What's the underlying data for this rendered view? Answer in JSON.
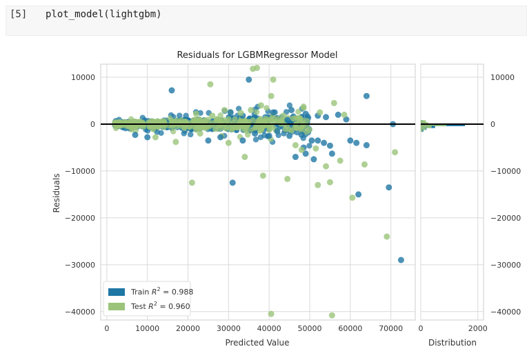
{
  "cell": {
    "prompt": "[5]",
    "code": "plot_model(lightgbm)"
  },
  "colors": {
    "train": "#1f77a4",
    "test": "#9bc47a",
    "zero_line": "#000000",
    "grid": "#d9d9d9"
  },
  "chart_data": {
    "type": "scatter",
    "title": "Residuals for LGBMRegressor Model",
    "xlabel": "Predicted Value",
    "ylabel": "Residuals",
    "xlim": [
      -1500,
      76000
    ],
    "ylim": [
      -41800,
      12800
    ],
    "x_ticks": [
      "0",
      "10000",
      "20000",
      "30000",
      "40000",
      "50000",
      "60000",
      "70000"
    ],
    "y_ticks": [
      "10000",
      "0",
      "−10000",
      "−20000",
      "−30000",
      "−40000"
    ],
    "grid": true,
    "legend_placement": "bottom-left",
    "legend": [
      {
        "label_prefix": "Train ",
        "r2_text": " = 0.988"
      },
      {
        "label_prefix": "Test ",
        "r2_text": " = 0.960"
      }
    ],
    "series": [
      {
        "name": "Train",
        "points": [
          [
            16000,
            7200
          ],
          [
            35000,
            9500
          ],
          [
            30500,
            2500
          ],
          [
            33500,
            1800
          ],
          [
            41000,
            2500
          ],
          [
            44500,
            900
          ],
          [
            45500,
            3000
          ],
          [
            49000,
            2200
          ],
          [
            52000,
            1800
          ],
          [
            54000,
            1500
          ],
          [
            57000,
            2000
          ],
          [
            59000,
            1000
          ],
          [
            64000,
            6000
          ],
          [
            70500,
            0
          ],
          [
            40000,
            -2500
          ],
          [
            45000,
            -2500
          ],
          [
            48000,
            -2300
          ],
          [
            50500,
            -3500
          ],
          [
            52000,
            -3500
          ],
          [
            53500,
            -4000
          ],
          [
            55000,
            -4600
          ],
          [
            60000,
            -3500
          ],
          [
            48500,
            -5000
          ],
          [
            49000,
            -6300
          ],
          [
            46500,
            -7000
          ],
          [
            55500,
            -6300
          ],
          [
            61500,
            -4000
          ],
          [
            64000,
            -4500
          ],
          [
            33500,
            -3500
          ],
          [
            36500,
            -2000
          ],
          [
            31000,
            -12500
          ],
          [
            51000,
            -7500
          ],
          [
            62000,
            -15000
          ],
          [
            69500,
            -13500
          ],
          [
            72500,
            -29000
          ],
          [
            10000,
            -2800
          ],
          [
            7000,
            -2300
          ],
          [
            25000,
            -3500
          ],
          [
            28000,
            -2800
          ],
          [
            42000,
            -1500
          ]
        ]
      },
      {
        "name": "Test",
        "points": [
          [
            36000,
            11800
          ],
          [
            37000,
            12000
          ],
          [
            25500,
            8500
          ],
          [
            41000,
            9500
          ],
          [
            29000,
            3000
          ],
          [
            33000,
            2400
          ],
          [
            26000,
            1800
          ],
          [
            22000,
            2200
          ],
          [
            43500,
            1800
          ],
          [
            46000,
            1200
          ],
          [
            48500,
            3500
          ],
          [
            56000,
            4500
          ],
          [
            58500,
            2000
          ],
          [
            52500,
            2500
          ],
          [
            38000,
            4000
          ],
          [
            35500,
            3000
          ],
          [
            40500,
            6000
          ],
          [
            21000,
            -12500
          ],
          [
            38500,
            -11000
          ],
          [
            34000,
            -7000
          ],
          [
            44500,
            -11700
          ],
          [
            46500,
            -4500
          ],
          [
            48000,
            -5500
          ],
          [
            51500,
            -5200
          ],
          [
            52000,
            -13000
          ],
          [
            54000,
            -9000
          ],
          [
            55000,
            -12400
          ],
          [
            57500,
            -7800
          ],
          [
            60500,
            -15700
          ],
          [
            63500,
            -8600
          ],
          [
            69000,
            -24000
          ],
          [
            71000,
            -6000
          ],
          [
            40500,
            -40500
          ],
          [
            55500,
            -40800
          ],
          [
            17000,
            -3800
          ],
          [
            12000,
            -2800
          ],
          [
            23000,
            -2000
          ],
          [
            30000,
            -4000
          ]
        ]
      }
    ],
    "distribution": {
      "xlabel": "Distribution",
      "x_ticks": [
        "0",
        "2000"
      ],
      "xlim": [
        0,
        2200
      ],
      "bins": [
        {
          "center": 600,
          "train": 80,
          "test": 180
        },
        {
          "center": 200,
          "train": 160,
          "test": 260
        },
        {
          "center": -200,
          "train": 1550,
          "test": 900
        },
        {
          "center": -600,
          "train": 500,
          "test": 380
        },
        {
          "center": -1000,
          "train": 200,
          "test": 180
        },
        {
          "center": -1400,
          "train": 90,
          "test": 60
        }
      ]
    }
  }
}
